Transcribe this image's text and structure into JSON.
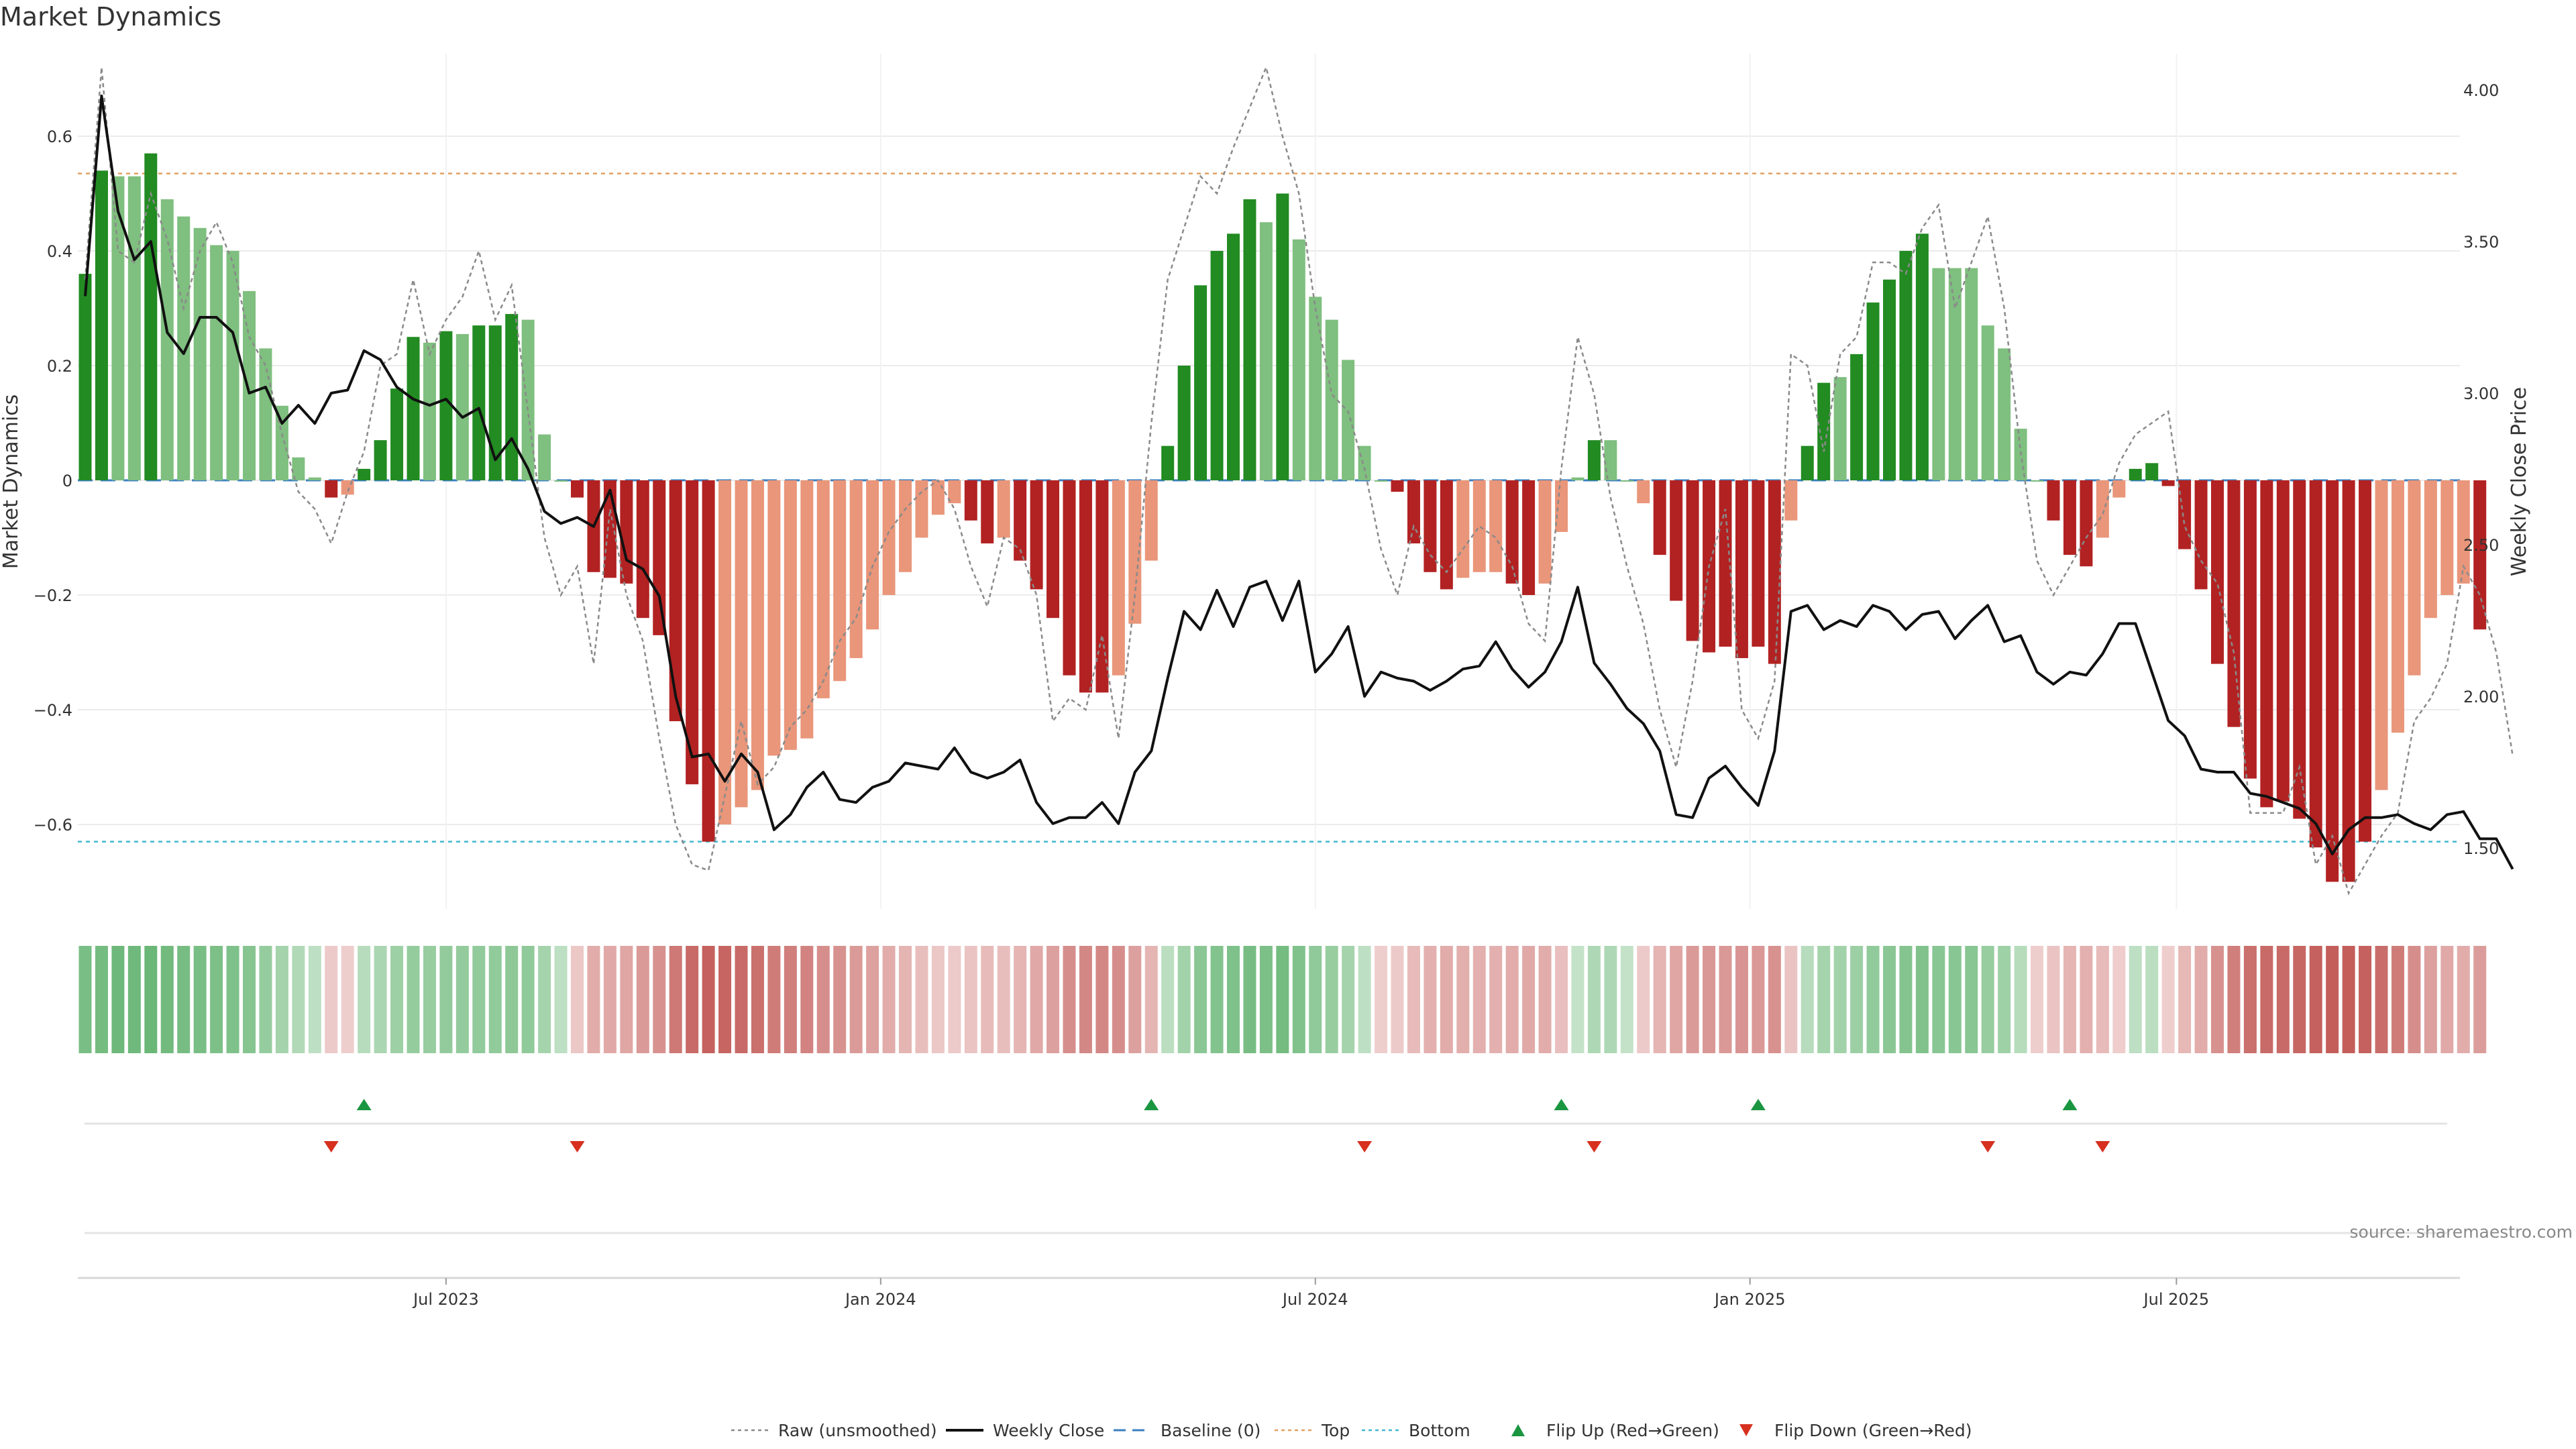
{
  "chart_data": {
    "type": "bar+line",
    "title": "Market Dynamics",
    "ylabel_left": "Market Dynamics",
    "ylabel_right": "Weekly Close Price",
    "ylim_left": [
      -0.75,
      0.75
    ],
    "ylim_right": [
      1.4,
      4.05
    ],
    "yticks_left": [
      0.6,
      0.4,
      0.2,
      0,
      -0.2,
      -0.4,
      -0.6
    ],
    "ytick_labels_left": [
      "0.6",
      "0.4",
      "0.2",
      "0",
      "−0.2",
      "−0.4",
      "−0.6"
    ],
    "yticks_right": [
      4.0,
      3.5,
      3.0,
      2.5,
      2.0,
      1.5
    ],
    "ytick_labels_right": [
      "4.00",
      "3.50",
      "3.00",
      "2.50",
      "2.00",
      "1.50"
    ],
    "x_start_label": "2023-01-06",
    "x_week_count": 146,
    "xtick_week_index": [
      22,
      48.5,
      75,
      101.5,
      127.5
    ],
    "xtick_labels": [
      "Jul 2023",
      "Jan 2024",
      "Jul 2024",
      "Jan 2025",
      "Jul 2025"
    ],
    "top_level": 0.535,
    "bottom_level": -0.63,
    "dynamics": [
      0.36,
      0.54,
      0.53,
      0.53,
      0.57,
      0.49,
      0.46,
      0.44,
      0.41,
      0.4,
      0.33,
      0.23,
      0.13,
      0.04,
      0.005,
      -0.03,
      -0.025,
      0.02,
      0.07,
      0.16,
      0.25,
      0.24,
      0.26,
      0.255,
      0.27,
      0.27,
      0.29,
      0.28,
      0.08,
      0,
      -0.03,
      -0.16,
      -0.17,
      -0.18,
      -0.24,
      -0.27,
      -0.42,
      -0.53,
      -0.63,
      -0.6,
      -0.57,
      -0.54,
      -0.48,
      -0.47,
      -0.45,
      -0.38,
      -0.35,
      -0.31,
      -0.26,
      -0.2,
      -0.16,
      -0.1,
      -0.06,
      -0.04,
      -0.07,
      -0.11,
      -0.1,
      -0.14,
      -0.19,
      -0.24,
      -0.34,
      -0.37,
      -0.37,
      -0.34,
      -0.25,
      -0.14,
      0.06,
      0.2,
      0.34,
      0.4,
      0.43,
      0.49,
      0.45,
      0.5,
      0.42,
      0.32,
      0.28,
      0.21,
      0.06,
      0,
      -0.02,
      -0.11,
      -0.16,
      -0.19,
      -0.17,
      -0.16,
      -0.16,
      -0.18,
      -0.2,
      -0.18,
      -0.09,
      0.005,
      0.07,
      0.07,
      0,
      -0.04,
      -0.13,
      -0.21,
      -0.28,
      -0.3,
      -0.29,
      -0.31,
      -0.29,
      -0.32,
      -0.07,
      0.06,
      0.17,
      0.18,
      0.22,
      0.31,
      0.35,
      0.4,
      0.43,
      0.37,
      0.37,
      0.37,
      0.27,
      0.23,
      0.09,
      0,
      -0.07,
      -0.13,
      -0.15,
      -0.1,
      -0.03,
      0.02,
      0.03,
      -0.01,
      -0.12,
      -0.19,
      -0.32,
      -0.43,
      -0.52,
      -0.57,
      -0.56,
      -0.59,
      -0.64,
      -0.7,
      -0.7,
      -0.63,
      -0.54,
      -0.44,
      -0.34,
      -0.24,
      -0.2,
      -0.18,
      -0.26
    ],
    "dynamics_tones": [
      1,
      1,
      0,
      0,
      1,
      0,
      0,
      0,
      0,
      0,
      0,
      0,
      0,
      0,
      0,
      1,
      0,
      1,
      1,
      1,
      1,
      0,
      1,
      0,
      1,
      1,
      1,
      0,
      0,
      0,
      1,
      1,
      1,
      1,
      1,
      1,
      1,
      1,
      1,
      0,
      0,
      0,
      0,
      0,
      0,
      0,
      0,
      0,
      0,
      0,
      0,
      0,
      0,
      0,
      1,
      1,
      0,
      1,
      1,
      1,
      1,
      1,
      1,
      0,
      0,
      0,
      1,
      1,
      1,
      1,
      1,
      1,
      0,
      1,
      0,
      0,
      0,
      0,
      0,
      0,
      1,
      1,
      1,
      1,
      0,
      0,
      0,
      1,
      1,
      0,
      0,
      0,
      1,
      0,
      0,
      0,
      1,
      1,
      1,
      1,
      1,
      1,
      1,
      1,
      0,
      1,
      1,
      0,
      1,
      1,
      1,
      1,
      1,
      0,
      0,
      0,
      0,
      0,
      0,
      0,
      1,
      1,
      1,
      0,
      0,
      1,
      1,
      1,
      1,
      1,
      1,
      1,
      1,
      1,
      1,
      1,
      1,
      1,
      1,
      1,
      0,
      0,
      0,
      0,
      0,
      0,
      1
    ],
    "series": [
      {
        "name": "Weekly Close",
        "values": [
          3.32,
          3.98,
          3.6,
          3.44,
          3.5,
          3.2,
          3.13,
          3.25,
          3.25,
          3.2,
          3.0,
          3.02,
          2.9,
          2.96,
          2.9,
          3.0,
          3.01,
          3.14,
          3.11,
          3.02,
          2.98,
          2.96,
          2.98,
          2.92,
          2.95,
          2.78,
          2.85,
          2.75,
          2.61,
          2.57,
          2.59,
          2.56,
          2.68,
          2.45,
          2.42,
          2.33,
          2.0,
          1.8,
          1.81,
          1.72,
          1.81,
          1.75,
          1.56,
          1.61,
          1.7,
          1.75,
          1.66,
          1.65,
          1.7,
          1.72,
          1.78,
          1.77,
          1.76,
          1.83,
          1.75,
          1.73,
          1.75,
          1.79,
          1.65,
          1.58,
          1.6,
          1.6,
          1.65,
          1.58,
          1.75,
          1.82,
          2.06,
          2.28,
          2.22,
          2.35,
          2.23,
          2.36,
          2.38,
          2.25,
          2.38,
          2.08,
          2.14,
          2.23,
          2.0,
          2.08,
          2.06,
          2.05,
          2.02,
          2.05,
          2.09,
          2.1,
          2.18,
          2.09,
          2.03,
          2.08,
          2.18,
          2.36,
          2.11,
          2.04,
          1.96,
          1.91,
          1.82,
          1.61,
          1.6,
          1.73,
          1.77,
          1.7,
          1.64,
          1.82,
          2.28,
          2.3,
          2.22,
          2.25,
          2.23,
          2.3,
          2.28,
          2.22,
          2.27,
          2.28,
          2.19,
          2.25,
          2.3,
          2.18,
          2.2,
          2.08,
          2.04,
          2.08,
          2.07,
          2.14,
          2.24,
          2.24,
          2.08,
          1.92,
          1.87,
          1.76,
          1.75,
          1.75,
          1.68,
          1.67,
          1.65,
          1.63,
          1.58,
          1.48,
          1.56,
          1.6,
          1.6,
          1.61,
          1.58,
          1.56,
          1.61,
          1.62,
          1.53,
          1.53,
          1.43
        ]
      },
      {
        "name": "Raw (unsmoothed)",
        "values": [
          0.35,
          0.72,
          0.4,
          0.38,
          0.5,
          0.42,
          0.3,
          0.4,
          0.45,
          0.38,
          0.25,
          0.2,
          0.08,
          -0.02,
          -0.05,
          -0.11,
          -0.02,
          0.05,
          0.2,
          0.22,
          0.35,
          0.22,
          0.28,
          0.32,
          0.4,
          0.28,
          0.34,
          0.12,
          -0.1,
          -0.2,
          -0.15,
          -0.32,
          -0.05,
          -0.2,
          -0.28,
          -0.45,
          -0.6,
          -0.67,
          -0.68,
          -0.55,
          -0.42,
          -0.53,
          -0.5,
          -0.43,
          -0.4,
          -0.35,
          -0.28,
          -0.24,
          -0.15,
          -0.09,
          -0.05,
          -0.02,
          0,
          -0.05,
          -0.15,
          -0.22,
          -0.1,
          -0.12,
          -0.2,
          -0.42,
          -0.38,
          -0.4,
          -0.27,
          -0.45,
          -0.2,
          0.1,
          0.35,
          0.44,
          0.53,
          0.5,
          0.58,
          0.65,
          0.72,
          0.6,
          0.5,
          0.3,
          0.15,
          0.12,
          0.02,
          -0.12,
          -0.2,
          -0.08,
          -0.13,
          -0.16,
          -0.12,
          -0.08,
          -0.1,
          -0.15,
          -0.25,
          -0.28,
          0.02,
          0.25,
          0.15,
          -0.03,
          -0.15,
          -0.25,
          -0.4,
          -0.5,
          -0.35,
          -0.15,
          -0.05,
          -0.4,
          -0.45,
          -0.35,
          0.22,
          0.2,
          0.05,
          0.22,
          0.25,
          0.38,
          0.38,
          0.36,
          0.44,
          0.48,
          0.3,
          0.38,
          0.46,
          0.3,
          0.05,
          -0.14,
          -0.2,
          -0.15,
          -0.1,
          -0.06,
          0.03,
          0.08,
          0.1,
          0.12,
          -0.08,
          -0.14,
          -0.18,
          -0.3,
          -0.58,
          -0.58,
          -0.58,
          -0.5,
          -0.67,
          -0.62,
          -0.72,
          -0.67,
          -0.62,
          -0.58,
          -0.42,
          -0.38,
          -0.32,
          -0.15,
          -0.2,
          -0.3,
          -0.48
        ]
      }
    ],
    "heat_strip": [
      0.64,
      0.68,
      0.74,
      0.72,
      0.76,
      0.7,
      0.66,
      0.64,
      0.62,
      0.6,
      0.54,
      0.42,
      0.3,
      0.2,
      0.1,
      -0.08,
      -0.05,
      0.15,
      0.25,
      0.35,
      0.42,
      0.4,
      0.44,
      0.43,
      0.45,
      0.45,
      0.48,
      0.46,
      0.3,
      0.1,
      -0.1,
      -0.28,
      -0.3,
      -0.32,
      -0.4,
      -0.45,
      -0.62,
      -0.72,
      -0.78,
      -0.75,
      -0.72,
      -0.68,
      -0.6,
      -0.58,
      -0.55,
      -0.48,
      -0.45,
      -0.4,
      -0.35,
      -0.28,
      -0.22,
      -0.16,
      -0.1,
      -0.08,
      -0.12,
      -0.18,
      -0.16,
      -0.22,
      -0.3,
      -0.36,
      -0.48,
      -0.52,
      -0.52,
      -0.48,
      -0.36,
      -0.22,
      0.12,
      0.32,
      0.5,
      0.56,
      0.6,
      0.66,
      0.62,
      0.68,
      0.58,
      0.46,
      0.4,
      0.3,
      0.1,
      -0.05,
      -0.08,
      -0.18,
      -0.25,
      -0.28,
      -0.26,
      -0.25,
      -0.25,
      -0.28,
      -0.3,
      -0.28,
      -0.15,
      0.05,
      0.22,
      0.22,
      0.05,
      -0.08,
      -0.22,
      -0.32,
      -0.4,
      -0.42,
      -0.41,
      -0.44,
      -0.41,
      -0.46,
      -0.12,
      0.15,
      0.3,
      0.32,
      0.36,
      0.45,
      0.5,
      0.55,
      0.58,
      0.52,
      0.52,
      0.52,
      0.4,
      0.34,
      0.16,
      -0.05,
      -0.12,
      -0.22,
      -0.25,
      -0.18,
      -0.06,
      0.1,
      0.12,
      -0.05,
      -0.2,
      -0.28,
      -0.45,
      -0.58,
      -0.68,
      -0.72,
      -0.72,
      -0.74,
      -0.78,
      -0.8,
      -0.8,
      -0.78,
      -0.7,
      -0.6,
      -0.48,
      -0.36,
      -0.3,
      -0.28,
      -0.38
    ],
    "flip_up_weeks": [
      17,
      65,
      90,
      102,
      121
    ],
    "flip_down_weeks": [
      15,
      30,
      78,
      92,
      116,
      123
    ],
    "legend": [
      "Raw (unsmoothed)",
      "Weekly Close",
      "Baseline (0)",
      "Top",
      "Bottom",
      "Flip Up (Red→Green)",
      "Flip Down (Green→Red)"
    ],
    "source": "source: sharemaestro.com"
  },
  "colors": {
    "green_strong": "#228B22",
    "green_light": "#7FBF7F",
    "red_strong": "#B22222",
    "red_light": "#E9967A",
    "close_line": "#111111",
    "raw_line": "#8A8A8A",
    "baseline": "#3A7FC1",
    "top": "#E0A060",
    "bottom": "#40B8D0",
    "flip_up": "#1A9641",
    "flip_down": "#D7301F",
    "grid": "#EBEBEB"
  }
}
